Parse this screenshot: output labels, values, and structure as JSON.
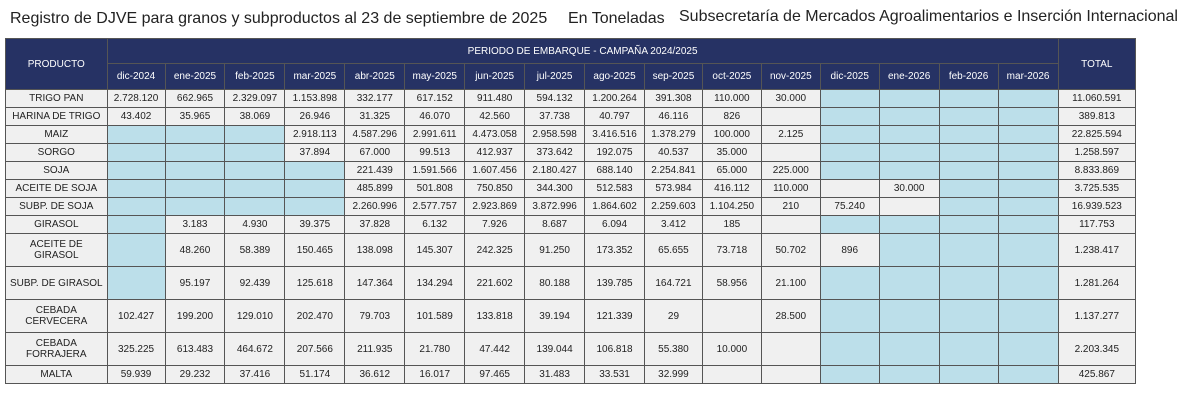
{
  "header": {
    "title": "Registro de DJVE para granos y subproductos al 23 de septiembre de 2025",
    "unit": "En Toneladas",
    "source": "Subsecretaría de Mercados Agroalimentarios e Inserción Internacional"
  },
  "table": {
    "product_header": "PRODUCTO",
    "period_header": "PERIODO DE EMBARQUE - CAMPAÑA 2024/2025",
    "total_header": "TOTAL",
    "months": [
      "dic-2024",
      "ene-2025",
      "feb-2025",
      "mar-2025",
      "abr-2025",
      "may-2025",
      "jun-2025",
      "jul-2025",
      "ago-2025",
      "sep-2025",
      "oct-2025",
      "nov-2025",
      "dic-2025",
      "ene-2026",
      "feb-2026",
      "mar-2026"
    ],
    "rows": [
      {
        "product": "TRIGO PAN",
        "cells": [
          "2.728.120",
          "662.965",
          "2.329.097",
          "1.153.898",
          "332.177",
          "617.152",
          "911.480",
          "594.132",
          "1.200.264",
          "391.308",
          "110.000",
          "30.000",
          "",
          "",
          "",
          ""
        ],
        "total": "11.060.591"
      },
      {
        "product": "HARINA DE TRIGO",
        "cells": [
          "43.402",
          "35.965",
          "38.069",
          "26.946",
          "31.325",
          "46.070",
          "42.560",
          "37.738",
          "40.797",
          "46.116",
          "826",
          "",
          "",
          "",
          "",
          ""
        ],
        "total": "389.813"
      },
      {
        "product": "MAIZ",
        "cells": [
          "",
          "",
          "",
          "2.918.113",
          "4.587.296",
          "2.991.611",
          "4.473.058",
          "2.958.598",
          "3.416.516",
          "1.378.279",
          "100.000",
          "2.125",
          "",
          "",
          "",
          ""
        ],
        "total": "22.825.594"
      },
      {
        "product": "SORGO",
        "cells": [
          "",
          "",
          "",
          "37.894",
          "67.000",
          "99.513",
          "412.937",
          "373.642",
          "192.075",
          "40.537",
          "35.000",
          "",
          "",
          "",
          "",
          ""
        ],
        "total": "1.258.597"
      },
      {
        "product": "SOJA",
        "cells": [
          "",
          "",
          "",
          "",
          "221.439",
          "1.591.566",
          "1.607.456",
          "2.180.427",
          "688.140",
          "2.254.841",
          "65.000",
          "225.000",
          "",
          "",
          "",
          ""
        ],
        "total": "8.833.869"
      },
      {
        "product": "ACEITE DE SOJA",
        "cells": [
          "",
          "",
          "",
          "",
          "485.899",
          "501.808",
          "750.850",
          "344.300",
          "512.583",
          "573.984",
          "416.112",
          "110.000",
          "",
          "30.000",
          "",
          ""
        ],
        "total": "3.725.535"
      },
      {
        "product": "SUBP. DE SOJA",
        "cells": [
          "",
          "",
          "",
          "",
          "2.260.996",
          "2.577.757",
          "2.923.869",
          "3.872.996",
          "1.864.602",
          "2.259.603",
          "1.104.250",
          "210",
          "75.240",
          "",
          "",
          ""
        ],
        "total": "16.939.523"
      },
      {
        "product": "GIRASOL",
        "cells": [
          "",
          "3.183",
          "4.930",
          "39.375",
          "37.828",
          "6.132",
          "7.926",
          "8.687",
          "6.094",
          "3.412",
          "185",
          "",
          "",
          "",
          "",
          ""
        ],
        "total": "117.753"
      },
      {
        "product": "ACEITE DE GIRASOL",
        "cells": [
          "",
          "48.260",
          "58.389",
          "150.465",
          "138.098",
          "145.307",
          "242.325",
          "91.250",
          "173.352",
          "65.655",
          "73.718",
          "50.702",
          "896",
          "",
          "",
          ""
        ],
        "total": "1.238.417"
      },
      {
        "product": "SUBP. DE GIRASOL",
        "cells": [
          "",
          "95.197",
          "92.439",
          "125.618",
          "147.364",
          "134.294",
          "221.602",
          "80.188",
          "139.785",
          "164.721",
          "58.956",
          "21.100",
          "",
          "",
          "",
          ""
        ],
        "total": "1.281.264"
      },
      {
        "product": "CEBADA CERVECERA",
        "cells": [
          "102.427",
          "199.200",
          "129.010",
          "202.470",
          "79.703",
          "101.589",
          "133.818",
          "39.194",
          "121.339",
          "29",
          "",
          "28.500",
          "",
          "",
          "",
          ""
        ],
        "total": "1.137.277"
      },
      {
        "product": "CEBADA FORRAJERA",
        "cells": [
          "325.225",
          "613.483",
          "464.672",
          "207.566",
          "211.935",
          "21.780",
          "47.442",
          "139.044",
          "106.818",
          "55.380",
          "10.000",
          "",
          "",
          "",
          "",
          ""
        ],
        "total": "2.203.345"
      },
      {
        "product": "MALTA",
        "cells": [
          "59.939",
          "29.232",
          "37.416",
          "51.174",
          "36.612",
          "16.017",
          "97.465",
          "31.483",
          "33.531",
          "32.999",
          "",
          "",
          "",
          "",
          "",
          ""
        ],
        "total": "425.867"
      }
    ],
    "highlight_color": "#bcdfea",
    "header_color": "#263264"
  }
}
